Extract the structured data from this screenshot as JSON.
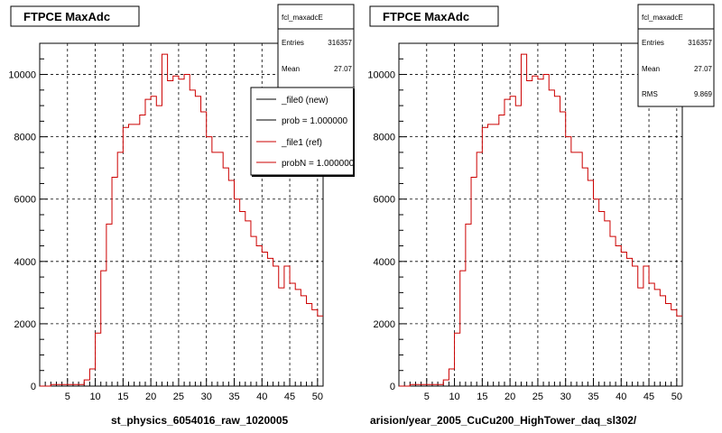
{
  "chart_data": [
    {
      "type": "histogram",
      "title": "FTPCE MaxAdc",
      "xlabel": "st_physics_6054016_raw_1020005",
      "ylabel": "",
      "xlim": [
        0,
        51
      ],
      "ylim": [
        0,
        11000
      ],
      "xticks": [
        5,
        10,
        15,
        20,
        25,
        30,
        35,
        40,
        45,
        50
      ],
      "yticks": [
        0,
        2000,
        4000,
        6000,
        8000,
        10000
      ],
      "grid": true,
      "stats": {
        "name": "fcl_maxadcE",
        "rows": [
          {
            "label": "Entries",
            "value": "316357"
          },
          {
            "label": "Mean",
            "value": "27.07"
          }
        ]
      },
      "legend": {
        "placement": "top-right",
        "entries": [
          {
            "label": "_file0 (new)",
            "color": "#000000"
          },
          {
            "label": "prob = 1.000000",
            "color": "#000000"
          },
          {
            "label": "_file1 (ref)",
            "color": "#cc0000"
          },
          {
            "label": "probN = 1.000000",
            "color": "#cc0000"
          }
        ]
      },
      "series": [
        {
          "color": "#cc0000",
          "bins_start": 0,
          "bin_width": 1,
          "values": [
            0,
            0,
            50,
            50,
            50,
            50,
            50,
            50,
            200,
            550,
            1700,
            3700,
            5200,
            6700,
            7500,
            8300,
            8400,
            8400,
            8700,
            9200,
            9300,
            9000,
            10650,
            9800,
            9950,
            9850,
            10000,
            9500,
            9300,
            8800,
            8000,
            7500,
            7500,
            7000,
            6600,
            6000,
            5600,
            5300,
            4800,
            4500,
            4300,
            4100,
            3850,
            3150,
            3850,
            3300,
            3100,
            2900,
            2650,
            2450,
            2250
          ]
        }
      ]
    },
    {
      "type": "histogram",
      "title": "FTPCE MaxAdc",
      "xlabel": "arision/year_2005_CuCu200_HighTower_daq_sl302/",
      "ylabel": "",
      "xlim": [
        0,
        51
      ],
      "ylim": [
        0,
        11000
      ],
      "xticks": [
        5,
        10,
        15,
        20,
        25,
        30,
        35,
        40,
        45,
        50
      ],
      "yticks": [
        0,
        2000,
        4000,
        6000,
        8000,
        10000
      ],
      "grid": true,
      "stats": {
        "name": "fcl_maxadcE",
        "rows": [
          {
            "label": "Entries",
            "value": "316357"
          },
          {
            "label": "Mean",
            "value": "27.07"
          },
          {
            "label": "RMS",
            "value": "9.869"
          }
        ]
      },
      "series": [
        {
          "color": "#cc0000",
          "bins_start": 0,
          "bin_width": 1,
          "values": [
            0,
            0,
            50,
            50,
            50,
            50,
            50,
            50,
            200,
            550,
            1700,
            3700,
            5200,
            6700,
            7500,
            8300,
            8400,
            8400,
            8700,
            9200,
            9300,
            9000,
            10650,
            9800,
            9950,
            9850,
            10000,
            9500,
            9300,
            8800,
            8000,
            7500,
            7500,
            7000,
            6600,
            6000,
            5600,
            5300,
            4800,
            4500,
            4300,
            4100,
            3850,
            3150,
            3850,
            3300,
            3100,
            2900,
            2650,
            2450,
            2250
          ]
        }
      ]
    }
  ]
}
